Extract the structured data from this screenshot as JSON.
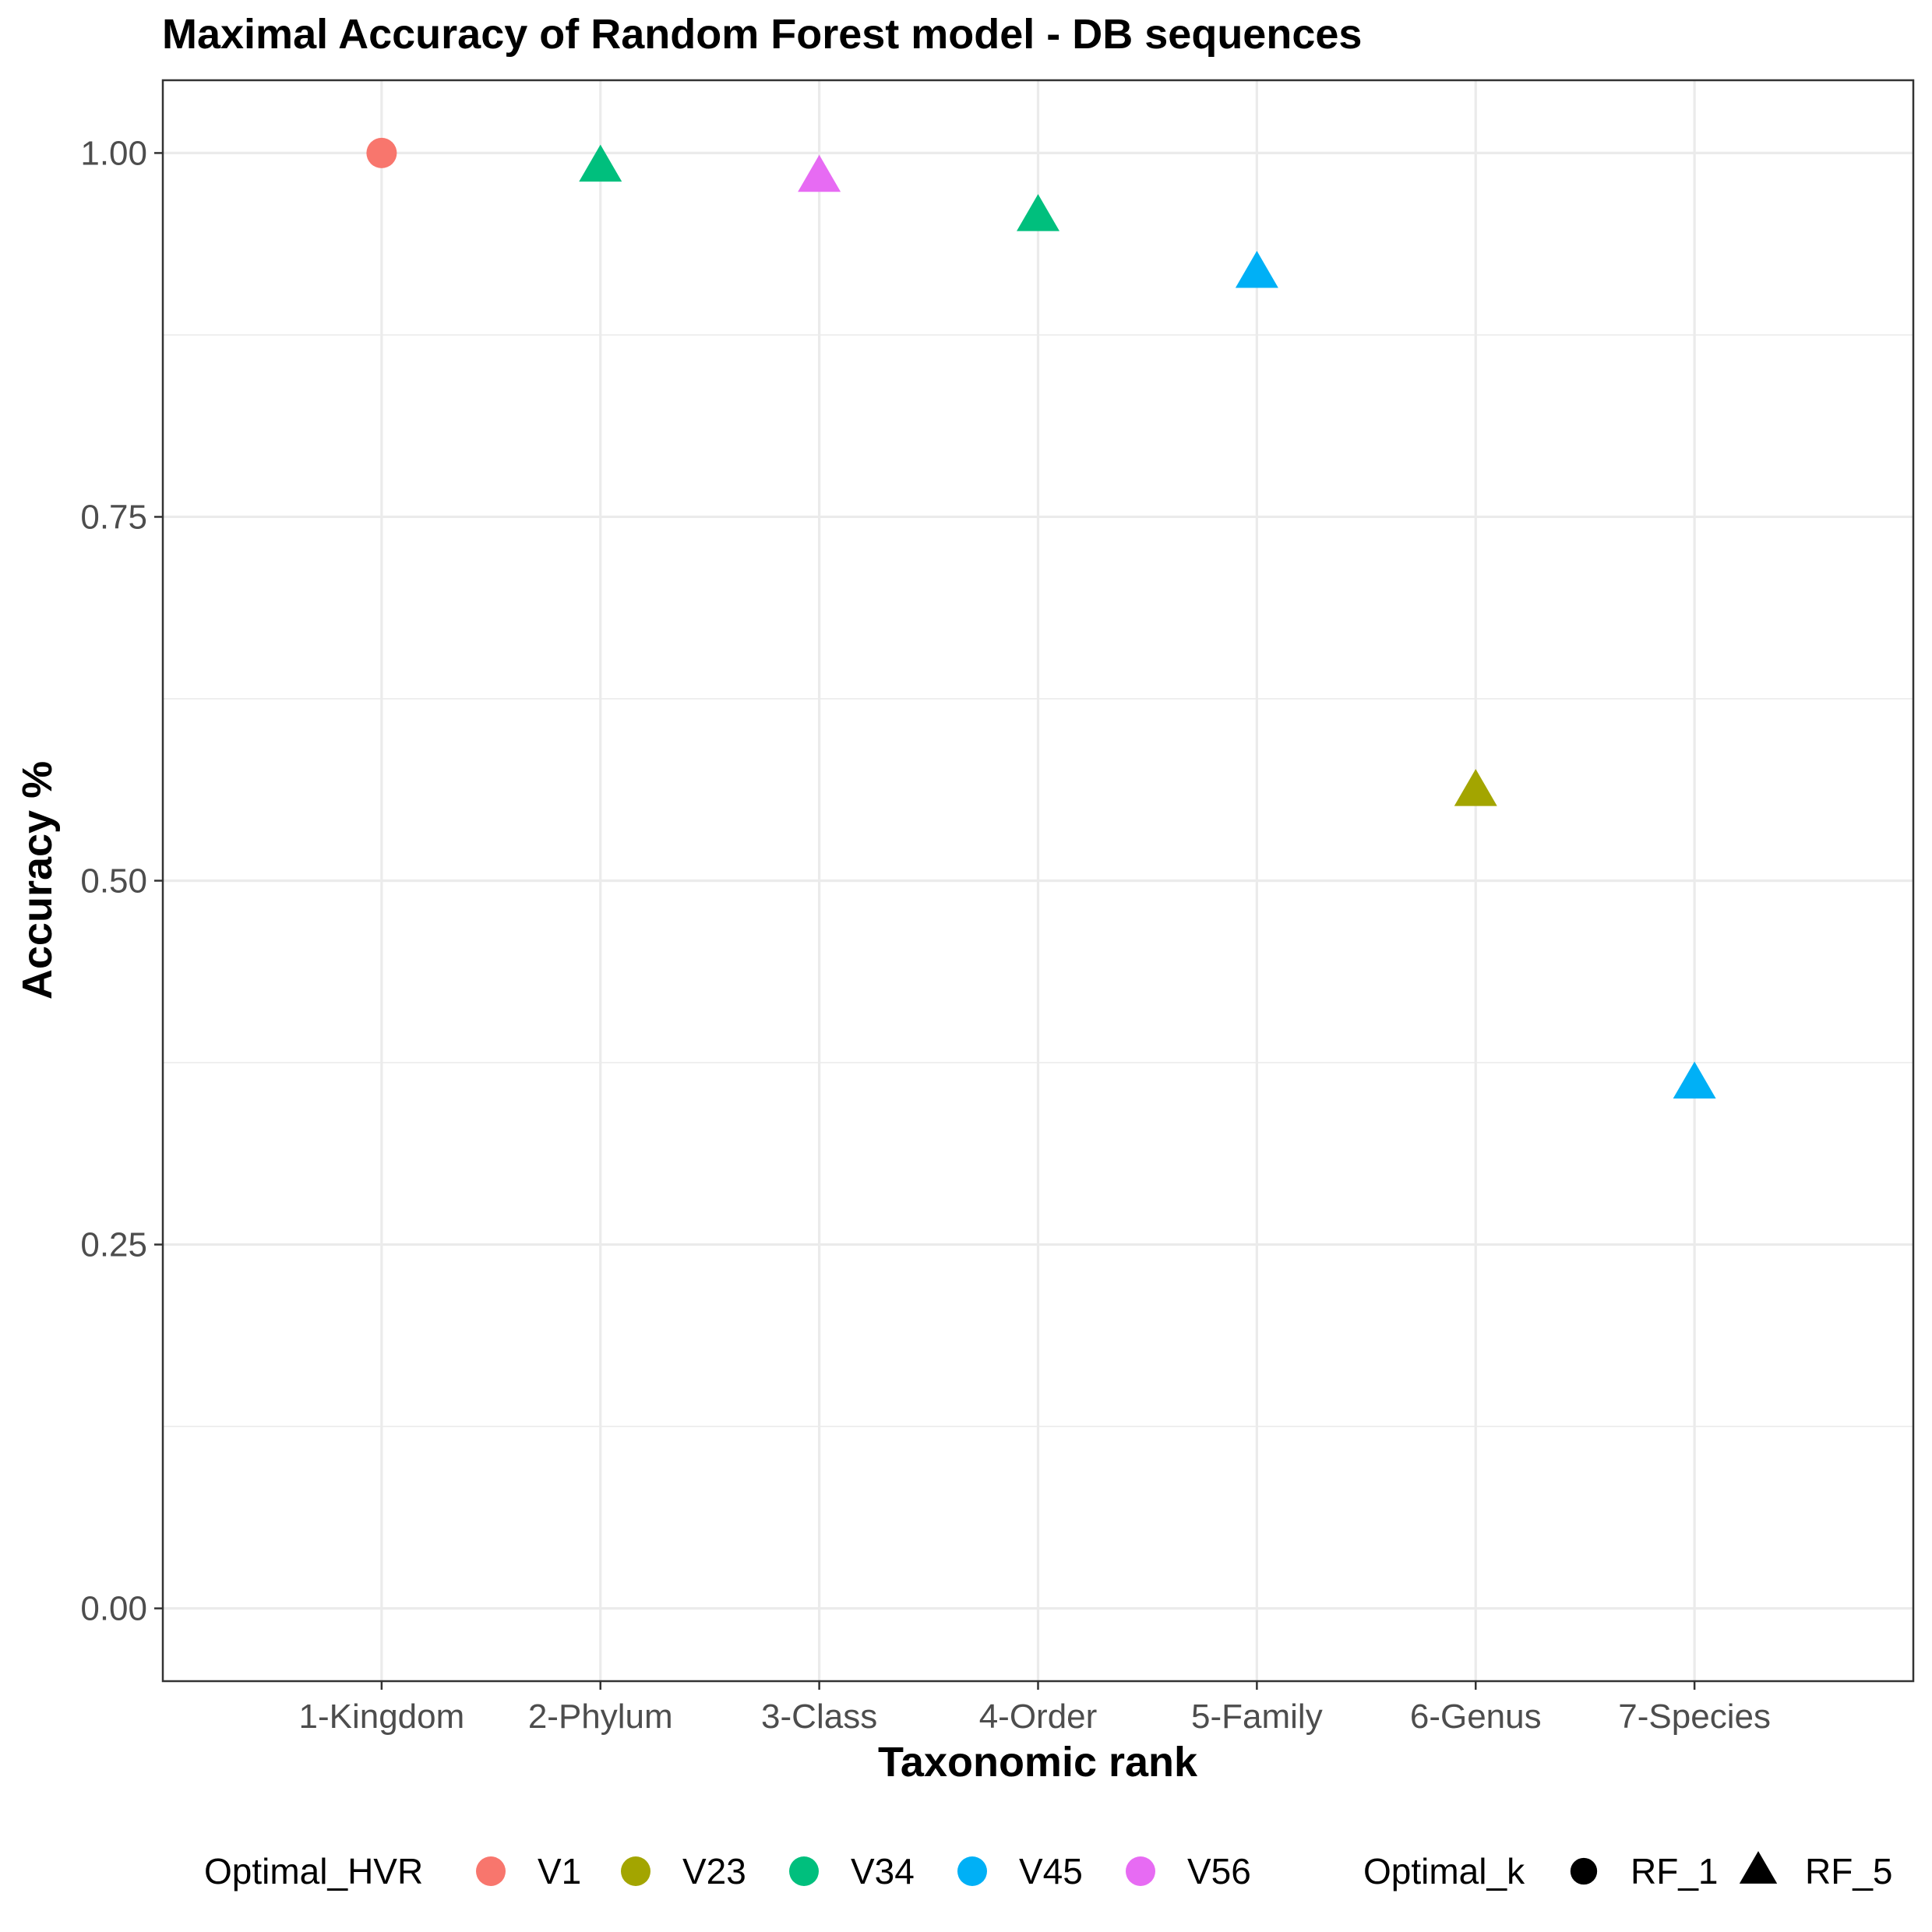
{
  "chart_data": {
    "type": "scatter",
    "title": "Maximal Accuracy of Random Forest model - DB sequences",
    "xlabel": "Taxonomic rank",
    "ylabel": "Accuracy %",
    "categories": [
      "1-Kingdom",
      "2-Phylum",
      "3-Class",
      "4-Order",
      "5-Family",
      "6-Genus",
      "7-Species"
    ],
    "ylim": [
      -0.05,
      1.05
    ],
    "y_ticks": [
      0.0,
      0.25,
      0.5,
      0.75,
      1.0
    ],
    "y_tick_labels": [
      "0.00",
      "0.25",
      "0.50",
      "0.75",
      "1.00"
    ],
    "grid": true,
    "points": [
      {
        "category": "1-Kingdom",
        "y": 1.0,
        "hvr": "V1",
        "k": "RF_1"
      },
      {
        "category": "2-Phylum",
        "y": 0.99,
        "hvr": "V34",
        "k": "RF_5"
      },
      {
        "category": "3-Class",
        "y": 0.983,
        "hvr": "V56",
        "k": "RF_5"
      },
      {
        "category": "4-Order",
        "y": 0.956,
        "hvr": "V34",
        "k": "RF_5"
      },
      {
        "category": "5-Family",
        "y": 0.917,
        "hvr": "V45",
        "k": "RF_5"
      },
      {
        "category": "6-Genus",
        "y": 0.561,
        "hvr": "V23",
        "k": "RF_5"
      },
      {
        "category": "7-Species",
        "y": 0.36,
        "hvr": "V45",
        "k": "RF_5"
      }
    ],
    "legend": {
      "placement": "bottom",
      "color_title": "Optimal_HVR",
      "color_entries": [
        {
          "name": "V1",
          "color": "#F8766D"
        },
        {
          "name": "V23",
          "color": "#A3A500"
        },
        {
          "name": "V34",
          "color": "#00BF7D"
        },
        {
          "name": "V45",
          "color": "#00B0F6"
        },
        {
          "name": "V56",
          "color": "#E76BF3"
        }
      ],
      "shape_title": "Optimal_k",
      "shape_entries": [
        {
          "name": "RF_1",
          "shape": "circle"
        },
        {
          "name": "RF_5",
          "shape": "triangle"
        }
      ]
    }
  }
}
